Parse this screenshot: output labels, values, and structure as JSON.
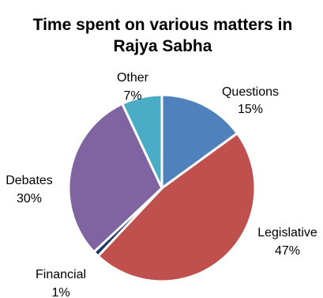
{
  "chart_data": {
    "type": "pie",
    "title": [
      "Time spent on various matters in",
      "Rajya Sabha"
    ],
    "slices": [
      {
        "label": "Questions",
        "value": 15,
        "value_label": "15%",
        "color": "#4F81BD"
      },
      {
        "label": "Legislative",
        "value": 47,
        "value_label": "47%",
        "color": "#C0504D"
      },
      {
        "label": "Financial",
        "value": 1,
        "value_label": "1%",
        "color": "#1F3864"
      },
      {
        "label": "Debates",
        "value": 30,
        "value_label": "30%",
        "color": "#8064A2"
      },
      {
        "label": "Other",
        "value": 7,
        "value_label": "7%",
        "color": "#4BACC6"
      }
    ],
    "start_angle_deg": 0,
    "direction": "clockwise",
    "slice_border_color": "#FFFFFF",
    "legend": "none"
  }
}
